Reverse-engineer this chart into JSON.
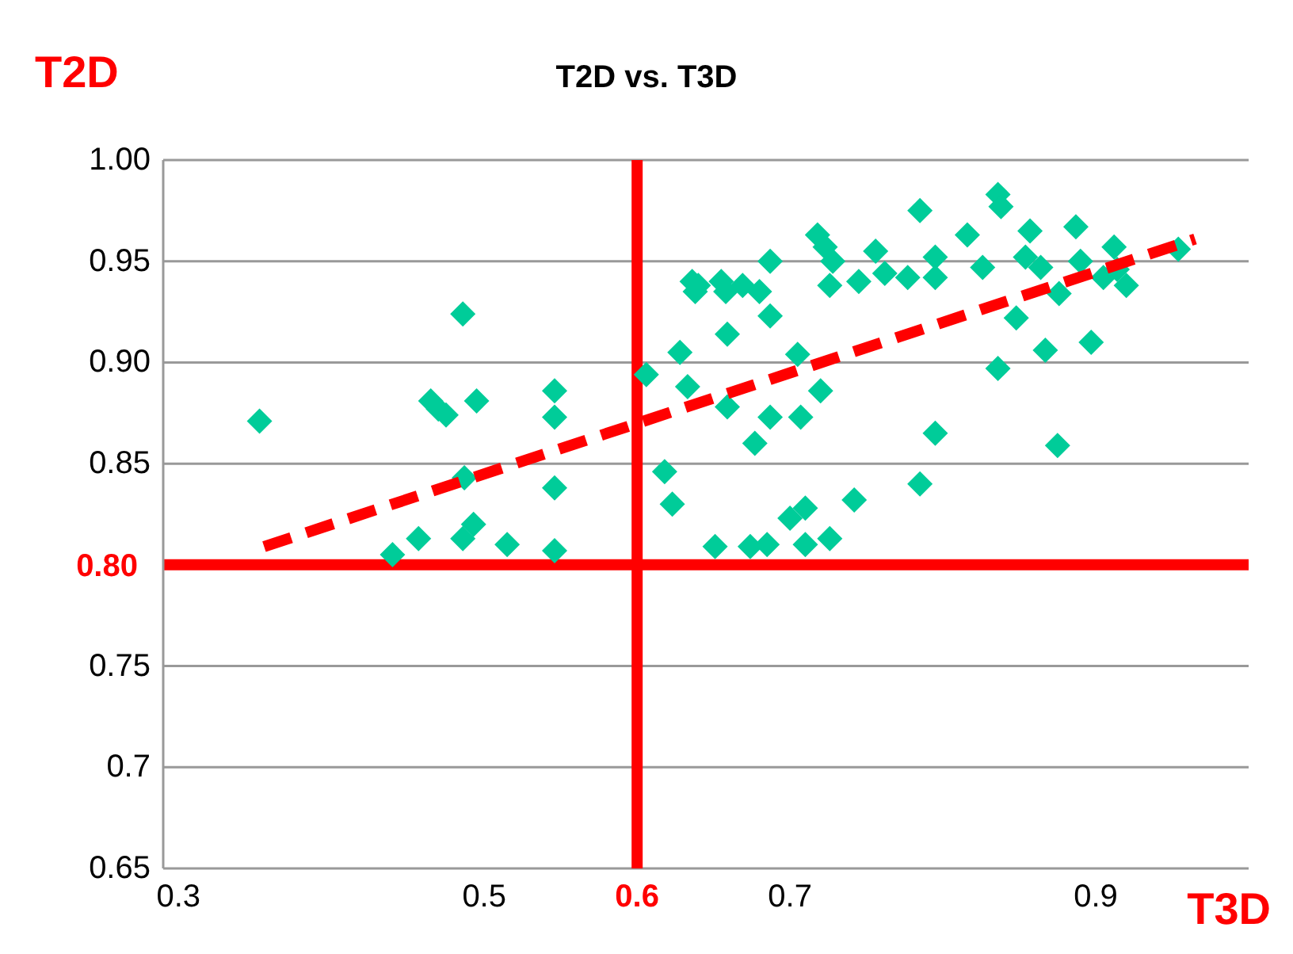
{
  "chart_data": {
    "type": "scatter",
    "title": "T2D vs. T3D",
    "xlabel": "T3D",
    "ylabel": "T2D",
    "xlim": [
      0.29,
      1.0
    ],
    "ylim": [
      0.65,
      1.0
    ],
    "xticks": [
      0.3,
      0.5,
      0.6,
      0.7,
      0.9
    ],
    "yticks": [
      0.65,
      {
        "value": 0.7,
        "label": "0.7"
      },
      0.75,
      0.85,
      {
        "value": 0.9,
        "label": "0.90"
      },
      0.95,
      {
        "value": 1.0,
        "label": "1.00"
      }
    ],
    "grid": "y",
    "legend": false,
    "marker": "diamond",
    "ref_lines": [
      {
        "axis": "y",
        "value": 0.8,
        "label": "0.80",
        "color": "#ff0000"
      },
      {
        "axis": "x",
        "value": 0.6,
        "color": "#ff0000"
      }
    ],
    "series": [
      {
        "type": "scatter",
        "color": "#00cc99",
        "x": [
          0.353,
          0.44,
          0.457,
          0.465,
          0.47,
          0.475,
          0.486,
          0.487,
          0.486,
          0.495,
          0.493,
          0.515,
          0.546,
          0.546,
          0.546,
          0.546,
          0.606,
          0.618,
          0.623,
          0.628,
          0.633,
          0.636,
          0.638,
          0.64,
          0.651,
          0.655,
          0.658,
          0.659,
          0.659,
          0.669,
          0.674,
          0.677,
          0.68,
          0.687,
          0.687,
          0.687,
          0.685,
          0.7,
          0.707,
          0.705,
          0.71,
          0.71,
          0.718,
          0.72,
          0.723,
          0.726,
          0.726,
          0.728,
          0.742,
          0.745,
          0.756,
          0.762,
          0.777,
          0.785,
          0.785,
          0.795,
          0.795,
          0.795,
          0.816,
          0.826,
          0.836,
          0.836,
          0.838,
          0.848,
          0.854,
          0.857,
          0.864,
          0.867,
          0.876,
          0.875,
          0.887,
          0.89,
          0.897,
          0.905,
          0.912,
          0.914,
          0.92,
          0.954
        ],
        "values": [
          0.871,
          0.805,
          0.813,
          0.881,
          0.877,
          0.874,
          0.924,
          0.843,
          0.813,
          0.881,
          0.82,
          0.81,
          0.886,
          0.873,
          0.838,
          0.807,
          0.894,
          0.846,
          0.83,
          0.905,
          0.888,
          0.94,
          0.935,
          0.938,
          0.809,
          0.94,
          0.935,
          0.914,
          0.878,
          0.938,
          0.809,
          0.86,
          0.935,
          0.923,
          0.95,
          0.873,
          0.81,
          0.823,
          0.873,
          0.904,
          0.828,
          0.81,
          0.963,
          0.886,
          0.957,
          0.938,
          0.813,
          0.95,
          0.832,
          0.94,
          0.955,
          0.944,
          0.942,
          0.975,
          0.84,
          0.952,
          0.942,
          0.865,
          0.963,
          0.947,
          0.897,
          0.983,
          0.977,
          0.922,
          0.952,
          0.965,
          0.947,
          0.906,
          0.934,
          0.859,
          0.967,
          0.95,
          0.91,
          0.942,
          0.957,
          0.946,
          0.938,
          0.956
        ]
      },
      {
        "type": "line",
        "color": "#ff0000",
        "line_style": "dashed",
        "marker": "none",
        "x": [
          0.356,
          0.965
        ],
        "values": [
          0.809,
          0.961
        ]
      }
    ]
  }
}
